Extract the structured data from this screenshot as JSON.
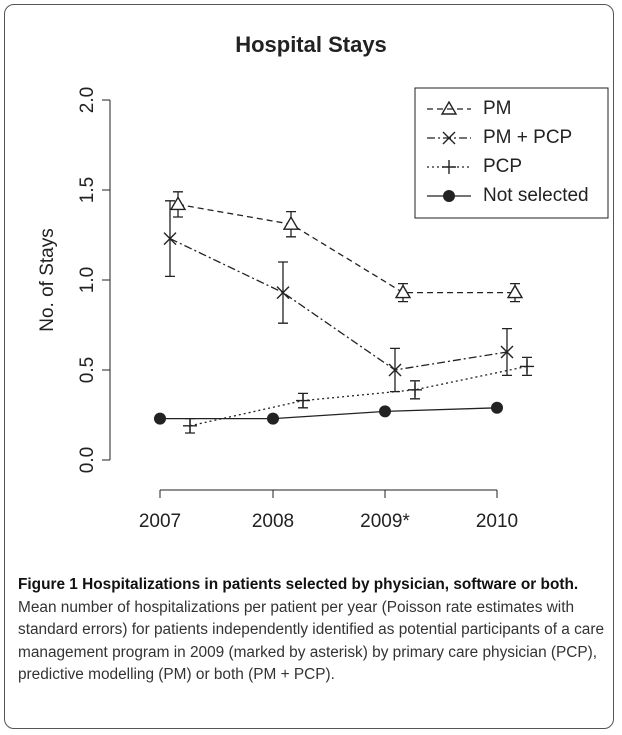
{
  "chart_data": {
    "type": "line",
    "title": "Hospital Stays",
    "ylabel": "No. of Stays",
    "categories": [
      "2007",
      "2008",
      "2009*",
      "2010"
    ],
    "series": [
      {
        "name": "PM",
        "color": "#222",
        "linestyle": "dashed",
        "marker": "triangle",
        "values": [
          1.42,
          1.31,
          0.93,
          0.93
        ],
        "errors": [
          0.07,
          0.07,
          0.05,
          0.05
        ]
      },
      {
        "name": "PM + PCP",
        "color": "#222",
        "linestyle": "dashdot",
        "marker": "x",
        "values": [
          1.23,
          0.93,
          0.5,
          0.6
        ],
        "errors": [
          0.21,
          0.17,
          0.12,
          0.13
        ]
      },
      {
        "name": "PCP",
        "color": "#222",
        "linestyle": "dotted",
        "marker": "plus",
        "values": [
          0.19,
          0.33,
          0.39,
          0.52
        ],
        "errors": [
          0.04,
          0.04,
          0.05,
          0.05
        ]
      },
      {
        "name": "Not selected",
        "color": "#222",
        "linestyle": "solid",
        "marker": "circle",
        "values": [
          0.23,
          0.23,
          0.27,
          0.29
        ]
      }
    ],
    "ylim": [
      0,
      2
    ],
    "yticks": [
      {
        "value": 0,
        "label": "0.0"
      },
      0.5,
      {
        "value": 1,
        "label": "1.0"
      },
      1.5,
      {
        "value": 2,
        "label": "2.0"
      }
    ],
    "legend": "upper right"
  },
  "caption": {
    "label": "Figure 1 Hospitalizations in patients selected by physician, software or both.",
    "text": "Mean number of hospitalizations per patient per year (Poisson rate estimates with standard errors) for patients independently identified as potential participants of a care management program in 2009 (marked by asterisk) by primary care physician (PCP), predictive modelling (PM) or both (PM + PCP)."
  }
}
